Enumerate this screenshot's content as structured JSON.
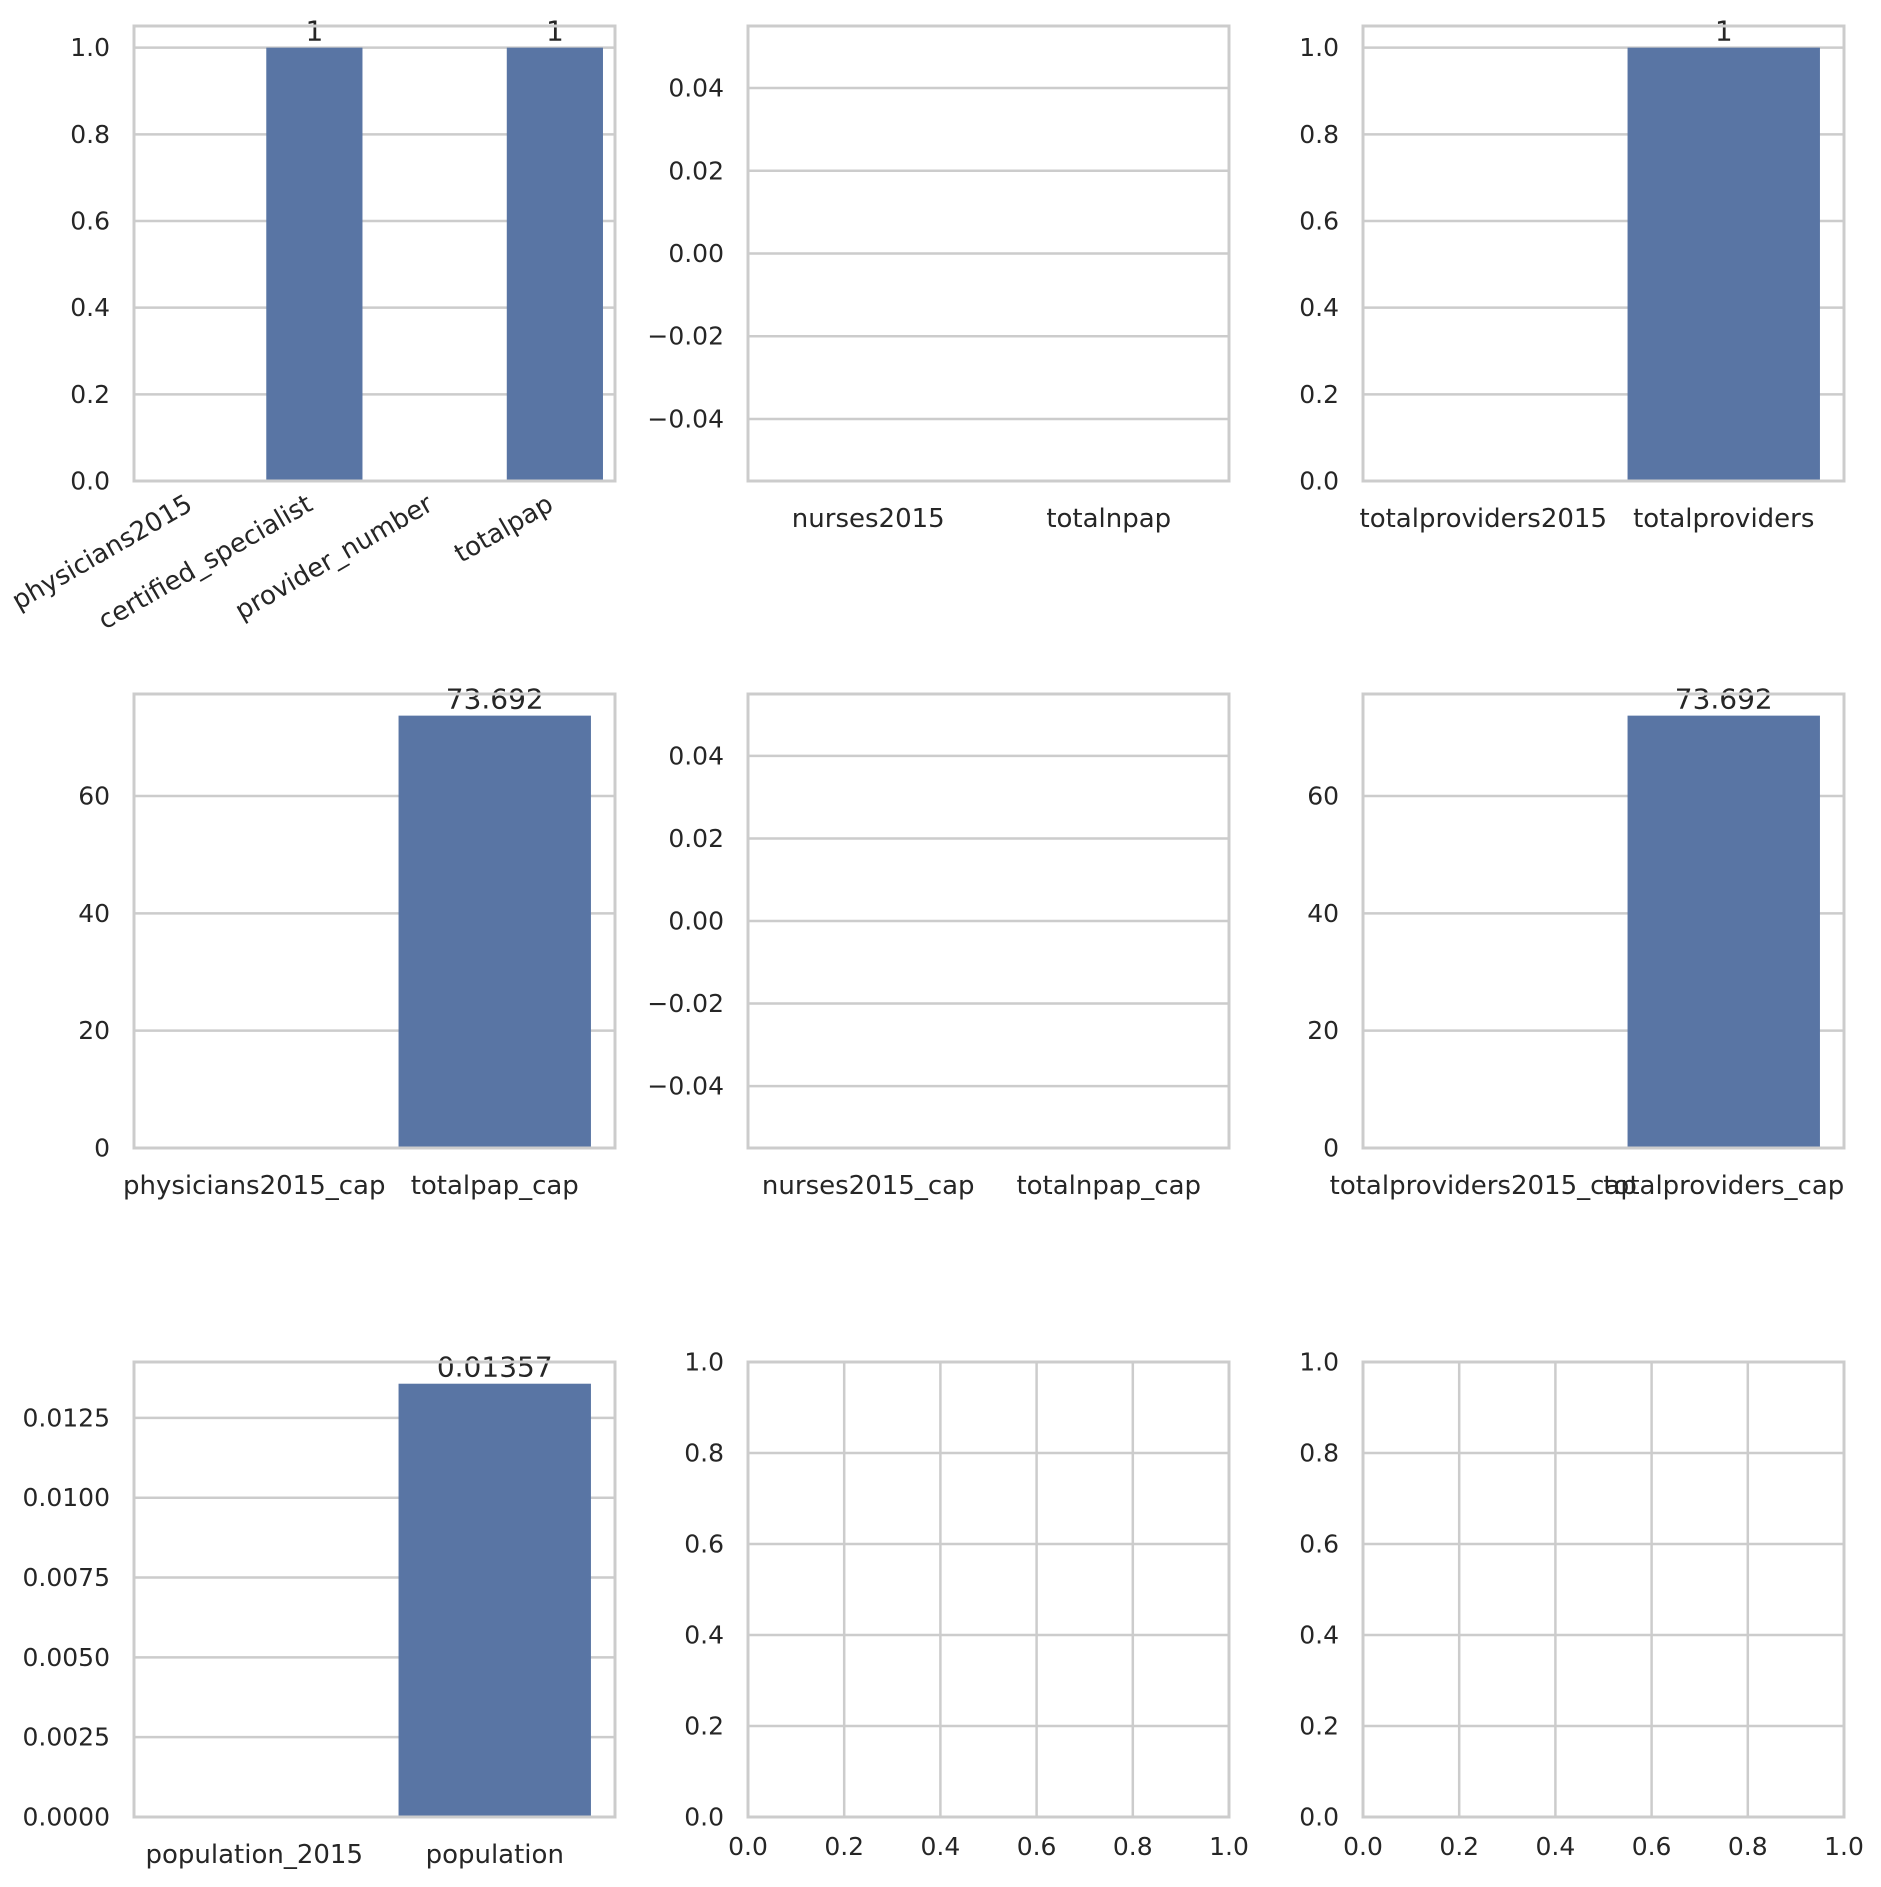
{
  "figure": {
    "layout": "3x3 grid of bar charts"
  },
  "colors": {
    "bar": "#5975a4",
    "grid": "#cccccc",
    "spine": "#cccccc",
    "text": "#262626",
    "background": "#ffffff"
  },
  "chart_data": [
    {
      "type": "bar",
      "categories": [
        "physicians2015",
        "certified_specialist",
        "provider_number",
        "totalpap"
      ],
      "values": [
        0,
        1,
        0,
        1
      ],
      "data_labels": [
        "",
        "1",
        "",
        "1"
      ],
      "ylim": [
        0,
        1.05
      ],
      "yticks": [
        "0.0",
        "0.2",
        "0.4",
        "0.6",
        "0.8",
        "1.0"
      ],
      "xtick_rotation": 30,
      "title": "",
      "xlabel": "",
      "ylabel": ""
    },
    {
      "type": "bar",
      "categories": [
        "nurses2015",
        "totalnpap"
      ],
      "values": [
        0,
        0
      ],
      "data_labels": [
        "",
        ""
      ],
      "ylim": [
        -0.055,
        0.055
      ],
      "yticks": [
        "−0.04",
        "−0.02",
        "0.00",
        "0.02",
        "0.04"
      ],
      "title": "",
      "xlabel": "",
      "ylabel": ""
    },
    {
      "type": "bar",
      "categories": [
        "totalproviders2015",
        "totalproviders"
      ],
      "values": [
        0,
        1
      ],
      "data_labels": [
        "",
        "1"
      ],
      "ylim": [
        0,
        1.05
      ],
      "yticks": [
        "0.0",
        "0.2",
        "0.4",
        "0.6",
        "0.8",
        "1.0"
      ],
      "title": "",
      "xlabel": "",
      "ylabel": ""
    },
    {
      "type": "bar",
      "categories": [
        "physicians2015_cap",
        "totalpap_cap"
      ],
      "values": [
        0,
        73.692
      ],
      "data_labels": [
        "",
        "73.692"
      ],
      "ylim": [
        0,
        77.38
      ],
      "yticks": [
        "0",
        "20",
        "40",
        "60"
      ],
      "title": "",
      "xlabel": "",
      "ylabel": ""
    },
    {
      "type": "bar",
      "categories": [
        "nurses2015_cap",
        "totalnpap_cap"
      ],
      "values": [
        0,
        0
      ],
      "data_labels": [
        "",
        ""
      ],
      "ylim": [
        -0.055,
        0.055
      ],
      "yticks": [
        "−0.04",
        "−0.02",
        "0.00",
        "0.02",
        "0.04"
      ],
      "title": "",
      "xlabel": "",
      "ylabel": ""
    },
    {
      "type": "bar",
      "categories": [
        "totalproviders2015_cap",
        "totalproviders_cap"
      ],
      "values": [
        0,
        73.692
      ],
      "data_labels": [
        "",
        "73.692"
      ],
      "ylim": [
        0,
        77.38
      ],
      "yticks": [
        "0",
        "20",
        "40",
        "60"
      ],
      "title": "",
      "xlabel": "",
      "ylabel": ""
    },
    {
      "type": "bar",
      "categories": [
        "population_2015",
        "population"
      ],
      "values": [
        0,
        0.01357
      ],
      "data_labels": [
        "",
        "0.01357"
      ],
      "ylim": [
        0,
        0.01425
      ],
      "yticks": [
        "0.0000",
        "0.0025",
        "0.0050",
        "0.0075",
        "0.0100",
        "0.0125"
      ],
      "title": "",
      "xlabel": "",
      "ylabel": ""
    },
    {
      "type": "empty",
      "xlim": [
        0,
        1
      ],
      "ylim": [
        0,
        1
      ],
      "xticks": [
        "0.0",
        "0.2",
        "0.4",
        "0.6",
        "0.8",
        "1.0"
      ],
      "yticks": [
        "0.0",
        "0.2",
        "0.4",
        "0.6",
        "0.8",
        "1.0"
      ],
      "grid": true
    },
    {
      "type": "empty",
      "xlim": [
        0,
        1
      ],
      "ylim": [
        0,
        1
      ],
      "xticks": [
        "0.0",
        "0.2",
        "0.4",
        "0.6",
        "0.8",
        "1.0"
      ],
      "yticks": [
        "0.0",
        "0.2",
        "0.4",
        "0.6",
        "0.8",
        "1.0"
      ],
      "grid": true
    }
  ]
}
